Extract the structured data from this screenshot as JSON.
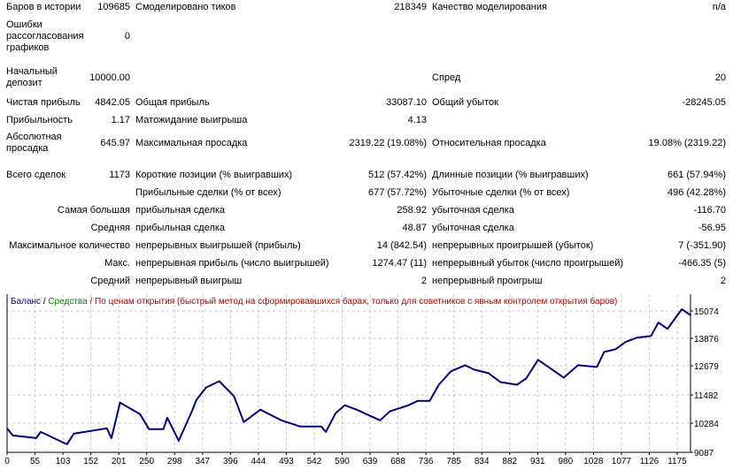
{
  "report": {
    "rows": [
      {
        "label1": "Баров в истории",
        "value1": "109685",
        "label2": "Смоделировано тиков",
        "value2": "218349",
        "label3": "Качество моделирования",
        "value3": "n/a"
      },
      {
        "label1": "Ошибки рассогласования графиков",
        "value1": "0"
      },
      {
        "label1": "Начальный депозит",
        "value1": "10000.00",
        "label3": "Спред",
        "value3": "20"
      },
      {
        "label1": "Чистая прибыль",
        "value1": "4842.05",
        "label2": "Общая прибыль",
        "value2": "33087.10",
        "label3": "Общий убыток",
        "value3": "-28245.05"
      },
      {
        "label1": "Прибыльность",
        "value1": "1.17",
        "label2": "Матожидание выигрыша",
        "value2": "4.13"
      },
      {
        "label1": "Абсолютная просадка",
        "value1": "645.97",
        "label2": "Максимальная просадка",
        "value2": "2319.22 (19.08%)",
        "label3": "Относительная просадка",
        "value3": "19.08% (2319.22)"
      },
      {
        "label1": "Всего сделок",
        "value1": "1173",
        "label2": "Короткие позиции (% выигравших)",
        "value2": "512 (57.42%)",
        "label3": "Длинные позиции (% выигравших)",
        "value3": "661 (57.94%)"
      },
      {
        "label2": "Прибыльные сделки (% от всех)",
        "value2": "677 (57.72%)",
        "label3": "Убыточные сделки (% от всех)",
        "value3": "496 (42.28%)"
      },
      {
        "label1": "Самая большая",
        "label2": "прибыльная сделка",
        "value2": "258.92",
        "label3": "убыточная сделка",
        "value3": "-116.70"
      },
      {
        "label1": "Средняя",
        "label2": "прибыльная сделка",
        "value2": "48.87",
        "label3": "убыточная сделка",
        "value3": "-56.95"
      },
      {
        "label1": "Максимальное количество",
        "label2": "непрерывных выигрышей (прибыль)",
        "value2": "14 (842.54)",
        "label3": "непрерывных проигрышей (убыток)",
        "value3": "7 (-351.90)"
      },
      {
        "label1": "Макс.",
        "label2": "непрерывная прибыль (число выигрышей)",
        "value2": "1274.47 (11)",
        "label3": "непрерывный убыток (число проигрышей)",
        "value3": "-466.35 (5)"
      },
      {
        "label1": "Средний",
        "label2": "непрерывный выигрыш",
        "value2": "2",
        "label3": "непрерывный проигрыш",
        "value3": "2"
      }
    ]
  },
  "chart_data": {
    "type": "line",
    "legend": {
      "balance": "Баланс",
      "sep1": "/",
      "equity": "Средства",
      "mode": "/ По ценам открытия (быстрый метод на сформировавшихся барах, только для советников с явным контролем открытия баров)"
    },
    "colors": {
      "balance": "#000080",
      "equity": "#008000",
      "mode": "#b00000",
      "grid": "#c8c8c8"
    },
    "x_ticks": [
      "0",
      "55",
      "103",
      "152",
      "201",
      "250",
      "298",
      "347",
      "396",
      "444",
      "493",
      "542",
      "590",
      "639",
      "688",
      "736",
      "785",
      "834",
      "882",
      "931",
      "980",
      "1028",
      "1077",
      "1126",
      "1175"
    ],
    "y_ticks": [
      "15074",
      "13876",
      "12679",
      "11482",
      "10284",
      "9087"
    ],
    "xlim": [
      0,
      1200
    ],
    "ylim": [
      9087,
      15500
    ],
    "grid": true,
    "series": [
      {
        "name": "Баланс",
        "x": [
          0,
          10,
          51,
          59,
          105,
          117,
          175,
          183,
          198,
          233,
          249,
          274,
          281,
          301,
          324,
          332,
          349,
          372,
          398,
          415,
          444,
          481,
          514,
          551,
          559,
          576,
          592,
          613,
          654,
          671,
          704,
          720,
          741,
          757,
          778,
          803,
          819,
          844,
          865,
          894,
          910,
          931,
          956,
          976,
          1001,
          1034,
          1047,
          1067,
          1084,
          1104,
          1129,
          1142,
          1158,
          1183,
          1199
        ],
        "y": [
          10104,
          9802,
          9690,
          9950,
          9426,
          9877,
          10104,
          9690,
          11195,
          10706,
          10066,
          10066,
          10555,
          9576,
          10819,
          11308,
          11835,
          12099,
          11459,
          10367,
          10894,
          10443,
          10179,
          10179,
          9953,
          10744,
          11082,
          10894,
          10443,
          10819,
          11082,
          11270,
          11270,
          11948,
          12513,
          12776,
          12588,
          12438,
          12061,
          11948,
          12212,
          13003,
          12588,
          12250,
          12776,
          12701,
          13341,
          13454,
          13755,
          13943,
          14019,
          14584,
          14320,
          15148,
          14884
        ]
      }
    ]
  }
}
